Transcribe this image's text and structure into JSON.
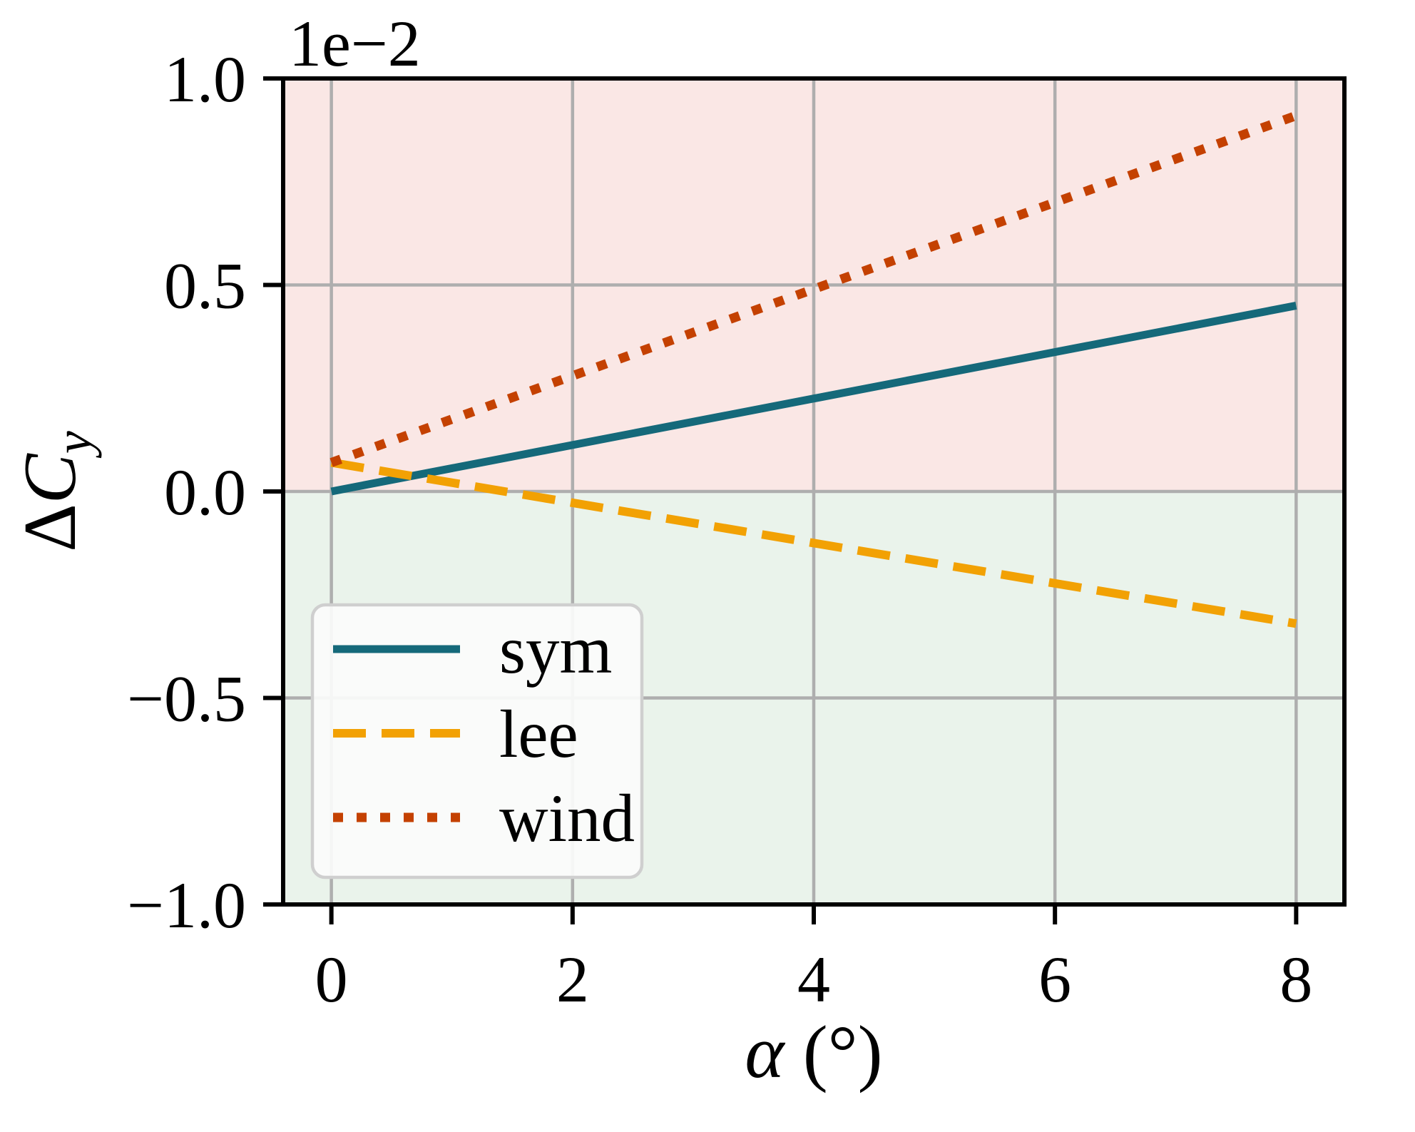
{
  "chart_data": {
    "type": "line",
    "title": "",
    "offset_text": "1e−2",
    "xlabel": {
      "alpha": "α",
      "unit": " (°)"
    },
    "ylabel": {
      "delta": "Δ",
      "main": "C",
      "sub": "y"
    },
    "xlim": [
      -0.4,
      8.4
    ],
    "ylim": [
      -1.0,
      1.0
    ],
    "y_scale": "values expressed in units of 1e-2",
    "xticks": [
      {
        "v": 0,
        "label": "0"
      },
      {
        "v": 2,
        "label": "2"
      },
      {
        "v": 4,
        "label": "4"
      },
      {
        "v": 6,
        "label": "6"
      },
      {
        "v": 8,
        "label": "8"
      }
    ],
    "yticks": [
      {
        "v": -1.0,
        "label": "−1.0"
      },
      {
        "v": -0.5,
        "label": "−0.5"
      },
      {
        "v": 0.0,
        "label": "0.0"
      },
      {
        "v": 0.5,
        "label": "0.5"
      },
      {
        "v": 1.0,
        "label": "1.0"
      }
    ],
    "regions": [
      {
        "range": [
          0.0,
          1.0
        ],
        "color": "#FAE7E5",
        "meaning": "positive band"
      },
      {
        "range": [
          -1.0,
          0.0
        ],
        "color": "#EAF3EB",
        "meaning": "negative band"
      }
    ],
    "grid": {
      "on": true,
      "color": "#AEAEAE"
    },
    "series": [
      {
        "name": "sym",
        "color": "#15697A",
        "style": "solid",
        "x": [
          0,
          8
        ],
        "y": [
          0.0,
          0.45
        ]
      },
      {
        "name": "lee",
        "color": "#F2A104",
        "style": "dashed",
        "x": [
          0,
          8
        ],
        "y": [
          0.07,
          -0.32
        ]
      },
      {
        "name": "wind",
        "color": "#C44101",
        "style": "dotted",
        "x": [
          0,
          8
        ],
        "y": [
          0.07,
          0.91
        ]
      }
    ],
    "legend": {
      "position": "lower left",
      "entries": [
        "sym",
        "lee",
        "wind"
      ]
    }
  }
}
